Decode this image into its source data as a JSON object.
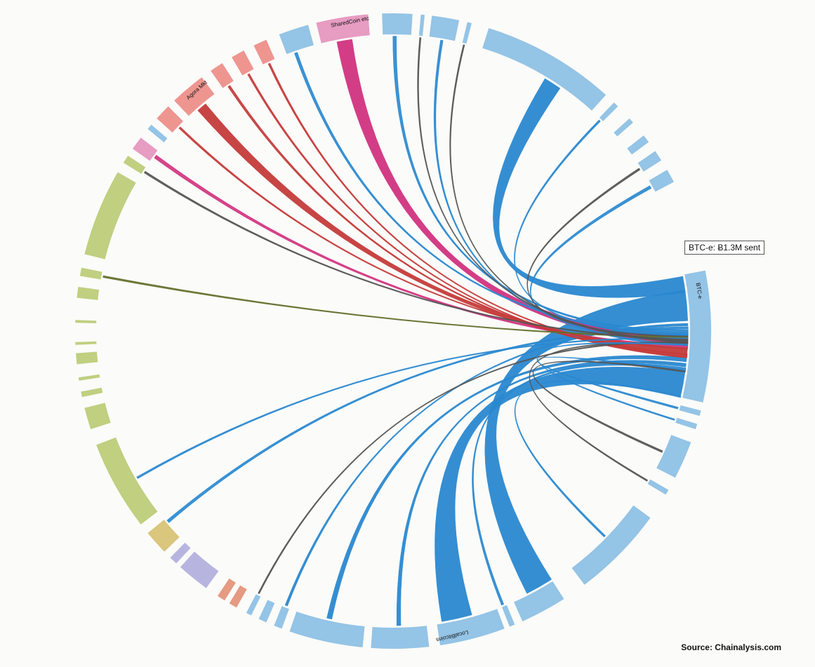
{
  "diagram": {
    "colors": {
      "exchange_blue": "#2a88d0",
      "exchange_arc": "#94c4e6",
      "mixer_pink": "#d1337f",
      "mixer_arc": "#e79cc2",
      "market_red": "#c43b3a",
      "market_arc": "#ee9590",
      "olive": "#c0cf80",
      "olive_chord": "#63702e",
      "gold": "#dac67c",
      "lavender": "#b7b5e0",
      "salmon": "#e69a82",
      "thin_gray": "#555555"
    },
    "arcs": [
      {
        "name": "btc-e",
        "label": "BTC-e"
      },
      {
        "name": "sharedcoin",
        "label": "SharedCoin etc"
      },
      {
        "name": "agora",
        "label": "Agora Mkt"
      },
      {
        "name": "localbitcoins",
        "label": "LocalBitcoins"
      }
    ],
    "tooltip": "BTC-e: Ƀ1.3M sent",
    "source": "Source: Chainalysis.com"
  }
}
